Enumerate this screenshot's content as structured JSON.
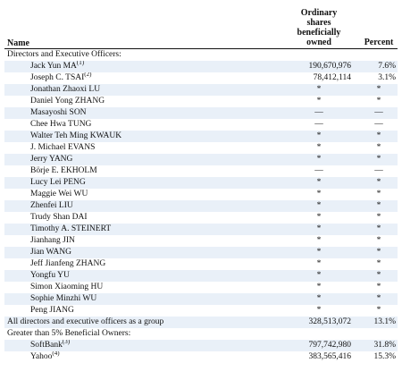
{
  "header": {
    "name": "Name",
    "shares_line1": "Ordinary",
    "shares_line2": "shares",
    "shares_line3": "beneficially",
    "shares_line4": "owned",
    "percent": "Percent"
  },
  "sections": {
    "directors": "Directors and Executive Officers:",
    "greater": "Greater than 5% Beneficial Owners:"
  },
  "rows": [
    {
      "name": "Jack Yun MA",
      "note": "(1)",
      "shares": "190,670,976",
      "percent": "7.6%"
    },
    {
      "name": "Joseph C. TSAI",
      "note": "(2)",
      "shares": "78,412,114",
      "percent": "3.1%"
    },
    {
      "name": "Jonathan Zhaoxi LU",
      "note": "",
      "shares": "*",
      "percent": "*"
    },
    {
      "name": "Daniel Yong ZHANG",
      "note": "",
      "shares": "*",
      "percent": "*"
    },
    {
      "name": "Masayoshi SON",
      "note": "",
      "shares": "—",
      "percent": "—"
    },
    {
      "name": "Chee Hwa TUNG",
      "note": "",
      "shares": "—",
      "percent": "—"
    },
    {
      "name": "Walter Teh Ming KWAUK",
      "note": "",
      "shares": "*",
      "percent": "*"
    },
    {
      "name": "J. Michael EVANS",
      "note": "",
      "shares": "*",
      "percent": "*"
    },
    {
      "name": "Jerry YANG",
      "note": "",
      "shares": "*",
      "percent": "*"
    },
    {
      "name": "Börje E. EKHOLM",
      "note": "",
      "shares": "—",
      "percent": "—"
    },
    {
      "name": "Lucy Lei PENG",
      "note": "",
      "shares": "*",
      "percent": "*"
    },
    {
      "name": "Maggie Wei WU",
      "note": "",
      "shares": "*",
      "percent": "*"
    },
    {
      "name": "Zhenfei LIU",
      "note": "",
      "shares": "*",
      "percent": "*"
    },
    {
      "name": "Trudy Shan DAI",
      "note": "",
      "shares": "*",
      "percent": "*"
    },
    {
      "name": "Timothy A. STEINERT",
      "note": "",
      "shares": "*",
      "percent": "*"
    },
    {
      "name": "Jianhang JIN",
      "note": "",
      "shares": "*",
      "percent": "*"
    },
    {
      "name": "Jian WANG",
      "note": "",
      "shares": "*",
      "percent": "*"
    },
    {
      "name": "Jeff Jianfeng ZHANG",
      "note": "",
      "shares": "*",
      "percent": "*"
    },
    {
      "name": "Yongfu YU",
      "note": "",
      "shares": "*",
      "percent": "*"
    },
    {
      "name": "Simon Xiaoming HU",
      "note": "",
      "shares": "*",
      "percent": "*"
    },
    {
      "name": "Sophie Minzhi WU",
      "note": "",
      "shares": "*",
      "percent": "*"
    },
    {
      "name": "Peng JIANG",
      "note": "",
      "shares": "*",
      "percent": "*"
    }
  ],
  "group_total": {
    "name": "All directors and executive officers as a group",
    "shares": "328,513,072",
    "percent": "13.1%"
  },
  "owners": [
    {
      "name": "SoftBank",
      "note": "(3)",
      "shares": "797,742,980",
      "percent": "31.8%"
    },
    {
      "name": "Yahoo",
      "note": "(4)",
      "shares": "383,565,416",
      "percent": "15.3%"
    }
  ]
}
